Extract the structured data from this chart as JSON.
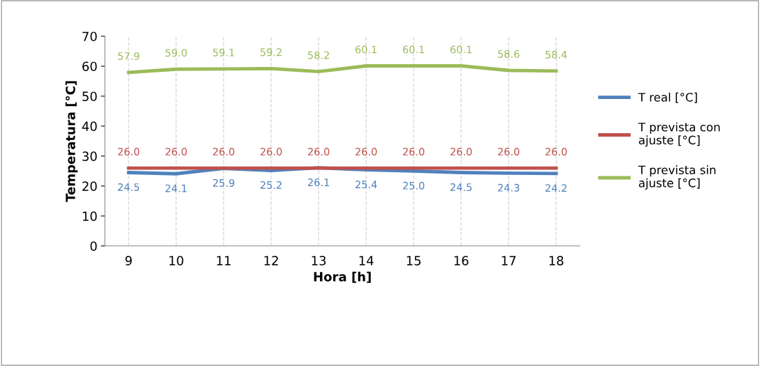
{
  "chart_data": {
    "type": "line",
    "xlabel": "Hora [h]",
    "ylabel": "Temperatura [°C]",
    "categories": [
      "9",
      "10",
      "11",
      "12",
      "13",
      "14",
      "15",
      "16",
      "17",
      "18"
    ],
    "series": [
      {
        "name": "T real [°C]",
        "color": "#4f81bd",
        "values": [
          24.5,
          24.1,
          25.9,
          25.2,
          26.1,
          25.4,
          25.0,
          24.5,
          24.3,
          24.2
        ],
        "value_labels": [
          "24.5",
          "24.1",
          "25.9",
          "25.2",
          "26.1",
          "25.4",
          "25.0",
          "24.5",
          "24.3",
          "24.2"
        ]
      },
      {
        "name": "T prevista con ajuste [°C]",
        "color": "#c0504d",
        "values": [
          26,
          26,
          26,
          26,
          26,
          26,
          26,
          26,
          26,
          26
        ],
        "value_labels": [
          "26.0",
          "26.0",
          "26.0",
          "26.0",
          "26.0",
          "26.0",
          "26.0",
          "26.0",
          "26.0",
          "26.0"
        ]
      },
      {
        "name": "T prevista sin ajuste [°C]",
        "color": "#9bbb59",
        "values": [
          57.9,
          59,
          59.1,
          59.2,
          58.2,
          60.1,
          60.1,
          60.1,
          58.6,
          58.4
        ],
        "value_labels": [
          "57.9",
          "59.0",
          "59.1",
          "59.2",
          "58.2",
          "60.1",
          "60.1",
          "60.1",
          "58.6",
          "58.4"
        ]
      }
    ],
    "ylim": [
      0,
      70
    ],
    "yticks": [
      0,
      10,
      20,
      30,
      40,
      50,
      60,
      70
    ],
    "grid": "x",
    "legend": "right",
    "marker": "none",
    "line_style": "solid"
  }
}
